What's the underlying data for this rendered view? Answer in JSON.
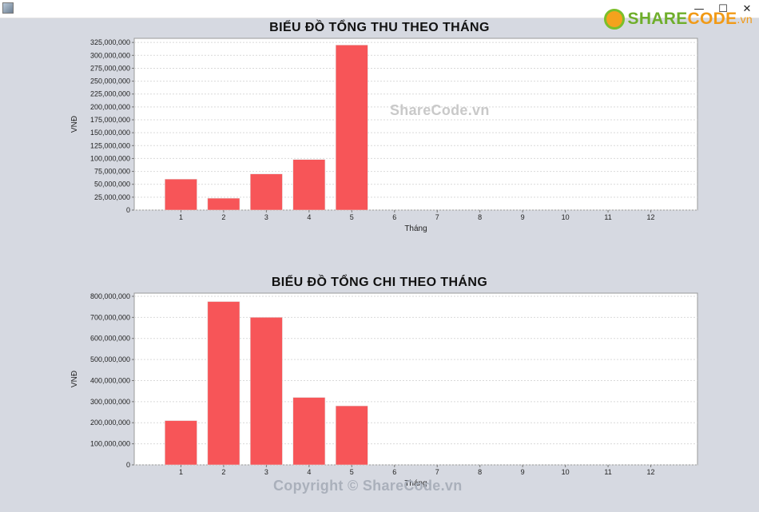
{
  "window": {
    "icon": "java-app-icon",
    "controls": {
      "minimize": "—",
      "maximize": "☐",
      "close": "✕"
    }
  },
  "brand": {
    "share": "SHARE",
    "code": "CODE",
    "vn": ".vn"
  },
  "watermarks": {
    "center": "ShareCode.vn",
    "bottom": "Copyright © ShareCode.vn"
  },
  "colors": {
    "bar": "#f75558",
    "plot_bg": "#ffffff",
    "page_bg": "#d6d9e1"
  },
  "chart_data": [
    {
      "type": "bar",
      "title": "BIỂU ĐỒ TỔNG THU THEO THÁNG",
      "xlabel": "Tháng",
      "ylabel": "VNĐ",
      "categories": [
        "1",
        "2",
        "3",
        "4",
        "5",
        "6",
        "7",
        "8",
        "9",
        "10",
        "11",
        "12"
      ],
      "values": [
        60000000,
        23000000,
        70000000,
        98000000,
        320000000,
        0,
        0,
        0,
        0,
        0,
        0,
        0
      ],
      "ylim": [
        0,
        333000000
      ],
      "yticks": [
        0,
        25000000,
        50000000,
        75000000,
        100000000,
        125000000,
        150000000,
        175000000,
        200000000,
        225000000,
        250000000,
        275000000,
        300000000,
        325000000
      ],
      "ytick_labels": [
        "0",
        "25,000,000",
        "50,000,000",
        "75,000,000",
        "100,000,000",
        "125,000,000",
        "150,000,000",
        "175,000,000",
        "200,000,000",
        "225,000,000",
        "250,000,000",
        "275,000,000",
        "300,000,000",
        "325,000,000"
      ],
      "grid": true
    },
    {
      "type": "bar",
      "title": "BIỂU ĐỒ TỔNG CHI THEO THÁNG",
      "xlabel": "Tháng",
      "ylabel": "VNĐ",
      "categories": [
        "1",
        "2",
        "3",
        "4",
        "5",
        "6",
        "7",
        "8",
        "9",
        "10",
        "11",
        "12"
      ],
      "values": [
        210000000,
        775000000,
        700000000,
        320000000,
        280000000,
        0,
        0,
        0,
        0,
        0,
        0,
        0
      ],
      "ylim": [
        0,
        815000000
      ],
      "yticks": [
        0,
        100000000,
        200000000,
        300000000,
        400000000,
        500000000,
        600000000,
        700000000,
        800000000
      ],
      "ytick_labels": [
        "0",
        "100,000,000",
        "200,000,000",
        "300,000,000",
        "400,000,000",
        "500,000,000",
        "600,000,000",
        "700,000,000",
        "800,000,000"
      ],
      "grid": true
    }
  ]
}
